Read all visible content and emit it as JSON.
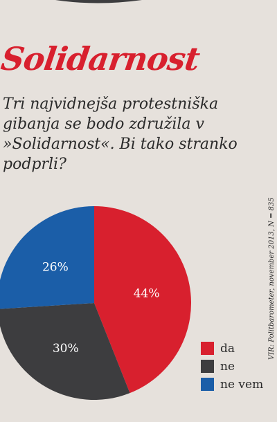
{
  "headline": "Solidarnost",
  "question": "Tri najvidnejša protestniška gibanja se bodo združila v »Solidarnost«. Bi tako stranko podprli?",
  "source": "VIR: Politbarometer, november 2013, N = 835",
  "chart_data": {
    "type": "pie",
    "title": "",
    "slices": [
      {
        "label": "da",
        "value": 44,
        "display": "44%",
        "color": "#d8202e"
      },
      {
        "label": "ne",
        "value": 30,
        "display": "30%",
        "color": "#3d3d3f"
      },
      {
        "label": "ne vem",
        "value": 26,
        "display": "26%",
        "color": "#1b5ea8"
      }
    ],
    "legend_position": "bottom-right"
  },
  "colors": {
    "accent": "#d8202e",
    "background": "#e6e1dc"
  }
}
